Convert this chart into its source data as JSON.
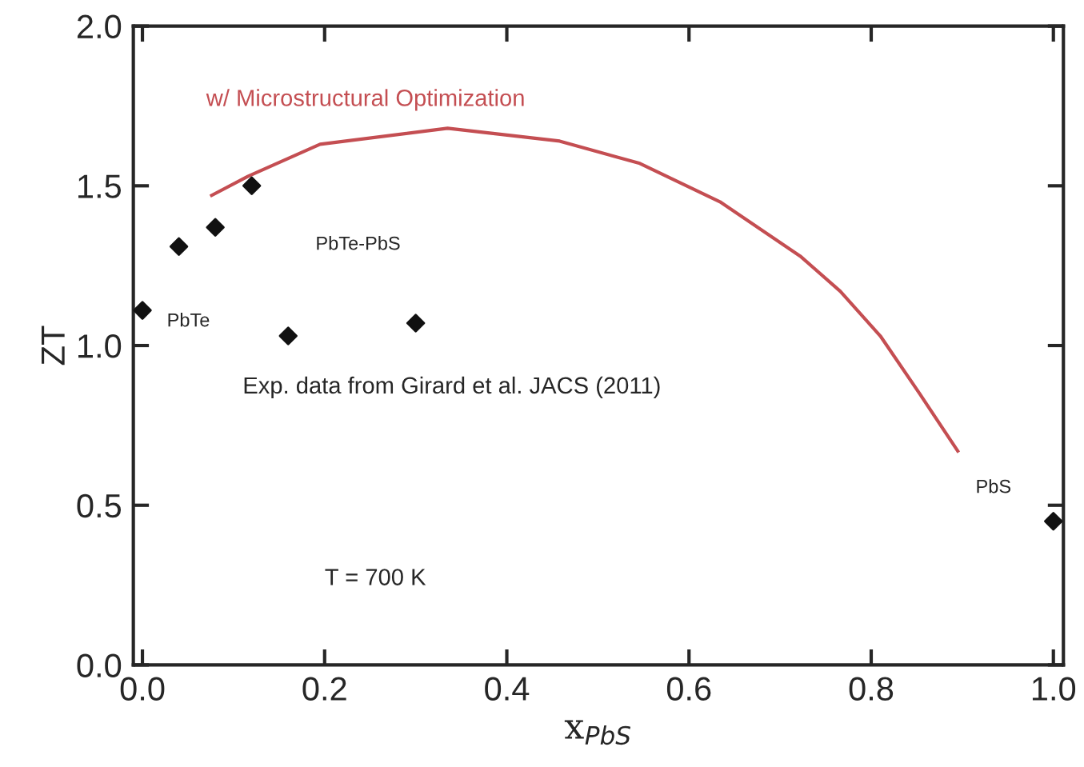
{
  "chart_data": {
    "type": "scatter",
    "xlabel": "x$_{PbS}$",
    "ylabel": "ZT",
    "xlim": [
      -0.01,
      1.011
    ],
    "ylim": [
      0,
      2.0
    ],
    "xticks": [
      {
        "value": 0,
        "label": "0.0"
      },
      0.2,
      0.4,
      0.6,
      0.8,
      {
        "value": 1,
        "label": "1.0"
      }
    ],
    "yticks": [
      {
        "value": 0,
        "label": "0.0"
      },
      0.5,
      {
        "value": 1,
        "label": "1.0"
      },
      1.5,
      {
        "value": 2,
        "label": "2.0"
      }
    ],
    "grid": false,
    "legend": false,
    "marker": "diamond",
    "series": [
      {
        "type": "line",
        "name": "w/ Microstructural Optimization",
        "color": "#c44e52",
        "line_style": "solid",
        "marker": "none",
        "x": [
          0.076,
          0.116,
          0.195,
          0.335,
          0.458,
          0.546,
          0.634,
          0.722,
          0.766,
          0.81,
          0.853,
          0.895
        ],
        "values": [
          1.47,
          1.53,
          1.63,
          1.68,
          1.64,
          1.57,
          1.45,
          1.28,
          1.17,
          1.03,
          0.85,
          0.67
        ]
      },
      {
        "color": "#111111",
        "x": [
          0.04,
          0.08,
          0.12,
          0.16,
          0.3
        ],
        "values": [
          1.31,
          1.37,
          1.5,
          1.03,
          1.07
        ]
      },
      {
        "color": "#111111",
        "x": [
          0.0,
          1.0
        ],
        "values": [
          1.11,
          0.45
        ]
      }
    ],
    "annotations": [
      {
        "text": "PbTe",
        "x": 0.0,
        "y": 1.11
      },
      {
        "text": "PbS",
        "x": 1.0,
        "y": 0.45
      },
      "PbTe-PbS",
      "Exp. data from Girard et al. JACS (2011)",
      "T = 700 K"
    ]
  }
}
